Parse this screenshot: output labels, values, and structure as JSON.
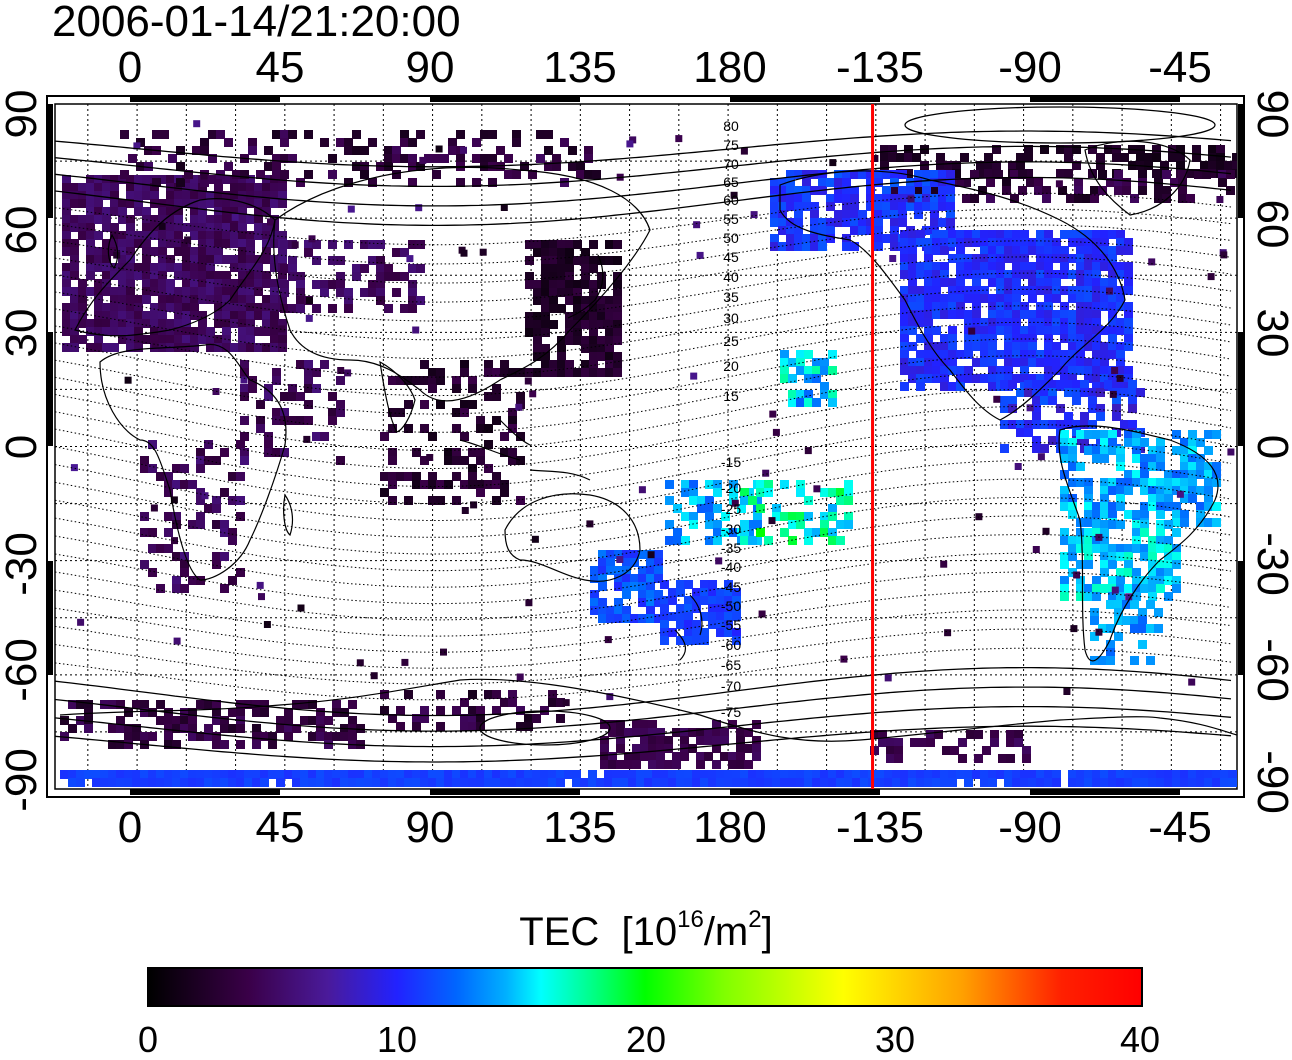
{
  "timestamp": "2006-01-14/21:20:00",
  "top_axis_ticks": [
    "0",
    "45",
    "90",
    "135",
    "180",
    "-135",
    "-90",
    "-45"
  ],
  "bottom_axis_ticks": [
    "0",
    "45",
    "90",
    "135",
    "180",
    "-135",
    "-90",
    "-45"
  ],
  "left_axis_ticks": [
    "90",
    "60",
    "30",
    "0",
    "-30",
    "-60",
    "-90"
  ],
  "right_axis_ticks": [
    "90",
    "60",
    "30",
    "0",
    "-30",
    "-60",
    "-90"
  ],
  "colorbar": {
    "label": "TEC",
    "unit_prefix": "[10",
    "unit_exp": "16",
    "unit_mid": "/m",
    "unit_exp2": "2",
    "unit_suffix": "]",
    "ticks": [
      "0",
      "10",
      "20",
      "30",
      "40"
    ],
    "range": [
      0,
      40
    ]
  },
  "magnetic_latitude_labels_north": [
    "80",
    "75",
    "70",
    "65",
    "60",
    "55",
    "50",
    "45",
    "40",
    "35",
    "30",
    "25",
    "20",
    "15"
  ],
  "magnetic_latitude_labels_south": [
    "-15",
    "-20",
    "-25",
    "-30",
    "-35",
    "-40",
    "-45",
    "-50",
    "-55",
    "-60",
    "-65",
    "-70",
    "-75"
  ],
  "marker_line": {
    "longitude": -136,
    "color": "#ff0000"
  },
  "map": {
    "lon_range": [
      -25,
      335
    ],
    "lat_range": [
      -90,
      90
    ]
  }
}
